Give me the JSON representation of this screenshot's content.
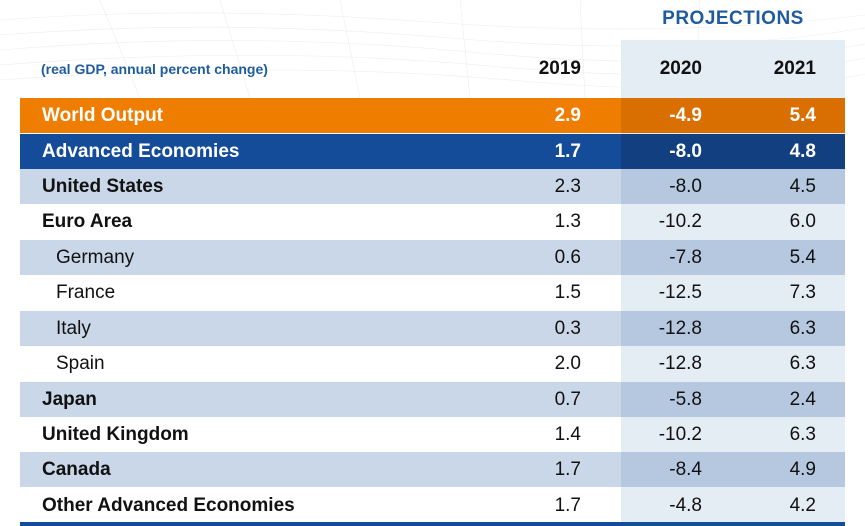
{
  "header": {
    "projections_label": "PROJECTIONS",
    "subtitle": "(real GDP, annual percent change)",
    "years": [
      "2019",
      "2020",
      "2021"
    ]
  },
  "rows": [
    {
      "name": "World Output",
      "v2019": "2.9",
      "v2020": "-4.9",
      "v2021": "5.4"
    },
    {
      "name": "Advanced Economies",
      "v2019": "1.7",
      "v2020": "-8.0",
      "v2021": "4.8"
    },
    {
      "name": "United States",
      "v2019": "2.3",
      "v2020": "-8.0",
      "v2021": "4.5"
    },
    {
      "name": "Euro Area",
      "v2019": "1.3",
      "v2020": "-10.2",
      "v2021": "6.0"
    },
    {
      "name": "Germany",
      "v2019": "0.6",
      "v2020": "-7.8",
      "v2021": "5.4"
    },
    {
      "name": "France",
      "v2019": "1.5",
      "v2020": "-12.5",
      "v2021": "7.3"
    },
    {
      "name": "Italy",
      "v2019": "0.3",
      "v2020": "-12.8",
      "v2021": "6.3"
    },
    {
      "name": "Spain",
      "v2019": "2.0",
      "v2020": "-12.8",
      "v2021": "6.3"
    },
    {
      "name": "Japan",
      "v2019": "0.7",
      "v2020": "-5.8",
      "v2021": "2.4"
    },
    {
      "name": "United Kingdom",
      "v2019": "1.4",
      "v2020": "-10.2",
      "v2021": "6.3"
    },
    {
      "name": "Canada",
      "v2019": "1.7",
      "v2020": "-8.4",
      "v2021": "4.9"
    },
    {
      "name": "Other Advanced Economies",
      "v2019": "1.7",
      "v2020": "-4.8",
      "v2021": "4.2"
    }
  ],
  "colors": {
    "world_output": "#ef7d00",
    "advanced_economies": "#154c99",
    "accent_text": "#1f5c9e",
    "light_row": "#c9d7e8"
  }
}
